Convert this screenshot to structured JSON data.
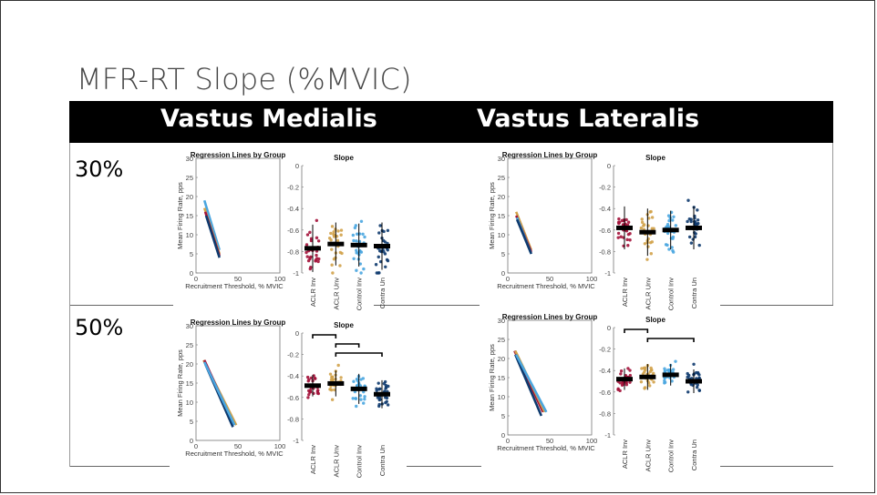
{
  "slide": {
    "title": "MFR-RT Slope (%MVIC)",
    "col_headers": [
      "Vastus Medialis",
      "Vastus Lateralis"
    ],
    "row_labels": [
      "30%",
      "50%"
    ]
  },
  "colors": {
    "ACLR Inv": "#a3123a",
    "ACLR Unv": "#d1a24a",
    "Control Inv": "#4aa6e0",
    "Contra Un": "#0e3a6e",
    "mean_bar": "#000000"
  },
  "chart_data": [
    {
      "panel": "30% Vastus Medialis",
      "left": {
        "type": "line",
        "title": "Regression Lines by Group",
        "xlabel": "Recruitment Threshold, % MVIC",
        "ylabel": "Mean Firing Rate, pps",
        "xlim": [
          0,
          100
        ],
        "ylim": [
          0,
          30
        ],
        "xticks": [
          "0",
          "50",
          "100"
        ],
        "yticks": [
          "0",
          "5",
          "10",
          "15",
          "20",
          "25",
          "30"
        ],
        "series": [
          {
            "group": "Control Inv",
            "x": [
              10,
              28
            ],
            "y": [
              19,
              6
            ]
          },
          {
            "group": "ACLR Unv",
            "x": [
              10,
              28
            ],
            "y": [
              17,
              5
            ]
          },
          {
            "group": "ACLR Inv",
            "x": [
              11,
              28
            ],
            "y": [
              16,
              4.5
            ]
          },
          {
            "group": "Contra Un",
            "x": [
              12,
              28
            ],
            "y": [
              15,
              4
            ]
          }
        ]
      },
      "right": {
        "type": "scatter",
        "title": "Slope",
        "categories": [
          "ACLR Inv",
          "ACLR Unv",
          "Control Inv",
          "Contra Un"
        ],
        "ylim": [
          -1,
          0
        ],
        "yticks": [
          "0",
          "-0.2",
          "-0.4",
          "-0.6",
          "-0.8",
          "-1"
        ],
        "means": [
          -0.77,
          -0.73,
          -0.74,
          -0.75
        ],
        "sds": [
          0.22,
          0.2,
          0.2,
          0.22
        ],
        "significance": []
      }
    },
    {
      "panel": "30% Vastus Lateralis",
      "left": {
        "type": "line",
        "title": "Regression Lines by Group",
        "xlabel": "Recruitment Threshold, % MVIC",
        "ylabel": "Mean Firing Rate, pps",
        "xlim": [
          0,
          100
        ],
        "ylim": [
          0,
          30
        ],
        "xticks": [
          "0",
          "50",
          "100"
        ],
        "yticks": [
          "0",
          "5",
          "10",
          "15",
          "20",
          "25",
          "30"
        ],
        "series": [
          {
            "group": "ACLR Unv",
            "x": [
              10,
              28
            ],
            "y": [
              16,
              6
            ]
          },
          {
            "group": "ACLR Inv",
            "x": [
              10,
              28
            ],
            "y": [
              15,
              5.5
            ]
          },
          {
            "group": "Control Inv",
            "x": [
              11,
              28
            ],
            "y": [
              14.5,
              5
            ]
          },
          {
            "group": "Contra Un",
            "x": [
              11,
              28
            ],
            "y": [
              14,
              5
            ]
          }
        ]
      },
      "right": {
        "type": "scatter",
        "title": "Slope",
        "categories": [
          "ACLR Inv",
          "ACLR Unv",
          "Control Inv",
          "Contra Un"
        ],
        "ylim": [
          -1,
          0
        ],
        "yticks": [
          "0",
          "-0.2",
          "-0.4",
          "-0.6",
          "-0.8",
          "-1"
        ],
        "means": [
          -0.58,
          -0.62,
          -0.6,
          -0.58
        ],
        "sds": [
          0.2,
          0.22,
          0.18,
          0.2
        ],
        "significance": []
      }
    },
    {
      "panel": "50% Vastus Medialis",
      "left": {
        "type": "line",
        "title": "Regression Lines by Group",
        "xlabel": "Recruitment Threshold, % MVIC",
        "ylabel": "Mean Firing Rate, pps",
        "xlim": [
          0,
          100
        ],
        "ylim": [
          0,
          30
        ],
        "xticks": [
          "0",
          "50",
          "100"
        ],
        "yticks": [
          "0",
          "5",
          "10",
          "15",
          "20",
          "25",
          "30"
        ],
        "series": [
          {
            "group": "ACLR Unv",
            "x": [
              9,
              48
            ],
            "y": [
              21,
              4
            ]
          },
          {
            "group": "ACLR Inv",
            "x": [
              10,
              45
            ],
            "y": [
              21,
              4
            ]
          },
          {
            "group": "Contra Un",
            "x": [
              11,
              44
            ],
            "y": [
              20,
              3.5
            ]
          },
          {
            "group": "Control Inv",
            "x": [
              10,
              46
            ],
            "y": [
              20.5,
              4
            ]
          }
        ]
      },
      "right": {
        "type": "scatter",
        "title": "Slope",
        "categories": [
          "ACLR Inv",
          "ACLR Unv",
          "Control Inv",
          "Contra Un"
        ],
        "ylim": [
          -1,
          0
        ],
        "yticks": [
          "0",
          "-0.2",
          "-0.4",
          "-0.6",
          "-0.8",
          "-1"
        ],
        "means": [
          -0.49,
          -0.47,
          -0.52,
          -0.57
        ],
        "sds": [
          0.1,
          0.12,
          0.14,
          0.13
        ],
        "significance": [
          [
            0,
            1
          ],
          [
            1,
            2
          ],
          [
            1,
            3
          ]
        ]
      }
    },
    {
      "panel": "50% Vastus Lateralis",
      "left": {
        "type": "line",
        "title": "Regression Lines by Group",
        "xlabel": "Recruitment Threshold, % MVIC",
        "ylabel": "Mean Firing Rate, pps",
        "xlim": [
          0,
          100
        ],
        "ylim": [
          0,
          30
        ],
        "xticks": [
          "0",
          "50",
          "100"
        ],
        "yticks": [
          "0",
          "5",
          "10",
          "15",
          "20",
          "25",
          "30"
        ],
        "series": [
          {
            "group": "ACLR Inv",
            "x": [
              8,
              42
            ],
            "y": [
              22,
              6
            ]
          },
          {
            "group": "ACLR Unv",
            "x": [
              9,
              44
            ],
            "y": [
              22,
              6
            ]
          },
          {
            "group": "Contra Un",
            "x": [
              9,
              40
            ],
            "y": [
              21,
              5
            ]
          },
          {
            "group": "Control Inv",
            "x": [
              10,
              46
            ],
            "y": [
              21,
              6
            ]
          }
        ]
      },
      "right": {
        "type": "scatter",
        "title": "Slope",
        "categories": [
          "ACLR Inv",
          "ACLR Unv",
          "Control Inv",
          "Contra Un"
        ],
        "ylim": [
          -1,
          0
        ],
        "yticks": [
          "0",
          "-0.2",
          "-0.4",
          "-0.6",
          "-0.8",
          "-1"
        ],
        "means": [
          -0.48,
          -0.46,
          -0.44,
          -0.5
        ],
        "sds": [
          0.1,
          0.12,
          0.1,
          0.11
        ],
        "significance": [
          [
            0,
            1
          ],
          [
            1,
            3
          ]
        ]
      }
    }
  ]
}
